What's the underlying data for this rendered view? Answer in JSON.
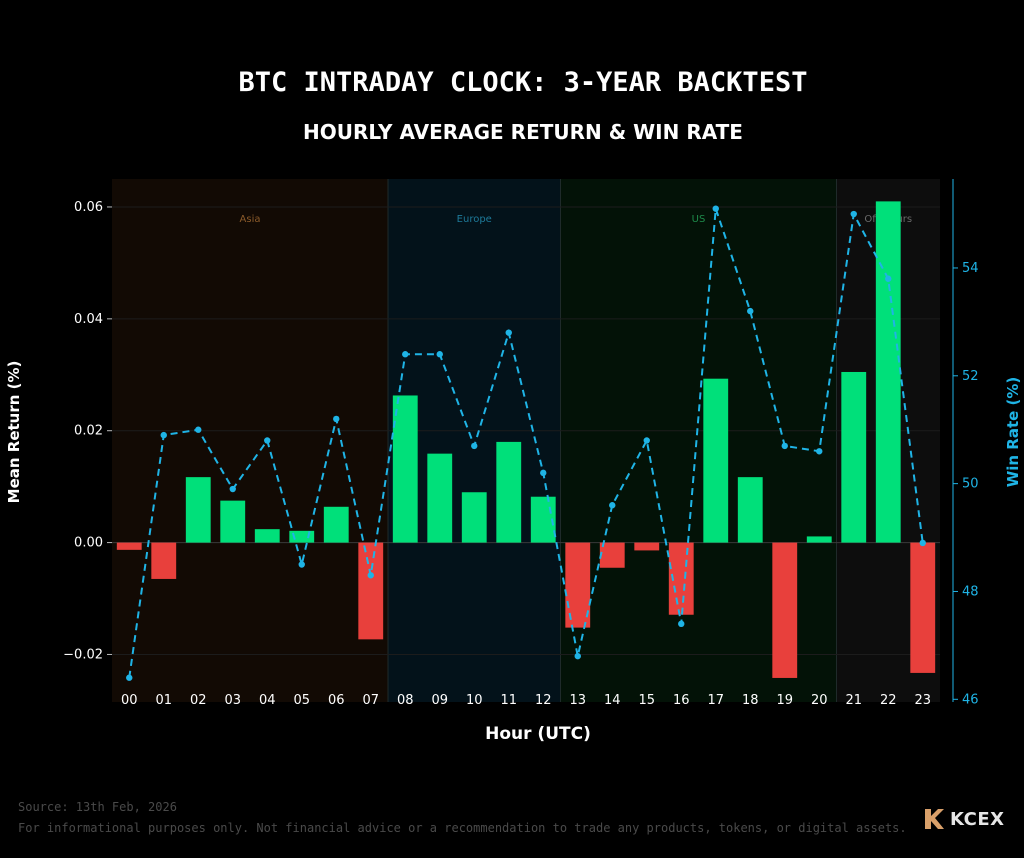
{
  "chart_data": {
    "type": "bar",
    "title": "BTC INTRADAY CLOCK: 3-YEAR BACKTEST",
    "subtitle": "HOURLY AVERAGE RETURN & WIN RATE",
    "xlabel": "Hour (UTC)",
    "ylabel": "Mean Return (%)",
    "y2label": "Win Rate (%)",
    "categories": [
      "00",
      "01",
      "02",
      "03",
      "04",
      "05",
      "06",
      "07",
      "08",
      "09",
      "10",
      "11",
      "12",
      "13",
      "14",
      "15",
      "16",
      "17",
      "18",
      "19",
      "20",
      "21",
      "22",
      "23"
    ],
    "series": [
      {
        "type": "bar",
        "values": [
          -0.0013,
          -0.0065,
          0.0117,
          0.0075,
          0.0024,
          0.0021,
          0.0064,
          -0.0173,
          0.0263,
          0.0159,
          0.009,
          0.018,
          0.0082,
          -0.0152,
          -0.0045,
          -0.0014,
          -0.0129,
          0.0293,
          0.0117,
          -0.0242,
          0.0011,
          0.0305,
          0.061,
          -0.0233
        ]
      },
      {
        "type": "line",
        "axis": "right",
        "values": [
          46.4,
          50.9,
          51.0,
          49.9,
          50.8,
          48.5,
          51.2,
          48.3,
          52.4,
          52.4,
          50.7,
          52.8,
          50.2,
          46.8,
          49.6,
          50.8,
          47.4,
          55.1,
          53.2,
          50.7,
          50.6,
          55.0,
          53.8,
          48.9
        ]
      }
    ],
    "ylim": [
      -0.0285,
      0.065
    ],
    "y2lim": [
      45.95,
      55.65
    ],
    "yticks": [
      "−0.02",
      "0.00",
      "0.02",
      "0.04",
      "0.06"
    ],
    "y2ticks": [
      "46",
      "48",
      "50",
      "52",
      "54"
    ],
    "sessions": [
      {
        "name": "Asia",
        "start_hour": 0,
        "end_hour": 7
      },
      {
        "name": "Europe",
        "start_hour": 8,
        "end_hour": 12
      },
      {
        "name": "US",
        "start_hour": 13,
        "end_hour": 20
      },
      {
        "name": "Off-Hours",
        "start_hour": 21,
        "end_hour": 23
      }
    ],
    "colors": {
      "positive_bar": "#00e07a",
      "negative_bar": "#e8403c",
      "win_rate_line": "#1fb4e6",
      "asia_zone": "#120a04",
      "europe_zone": "#03121a",
      "us_zone": "#031207",
      "offhours_zone": "#0d0d0d",
      "asia_label": "#8a5a2a",
      "europe_label": "#1e7a9a",
      "us_label": "#1e8a4a",
      "offhours_label": "#6a6a6a"
    },
    "grid": true
  },
  "footer": {
    "source": "Source: 13th Feb, 2026",
    "disclaimer": "For informational purposes only. Not financial advice or a recommendation to trade any products, tokens, or digital assets."
  },
  "brand": {
    "name": "KCEX",
    "icon": "kcex-logo-icon",
    "color": "#d9a06a"
  }
}
